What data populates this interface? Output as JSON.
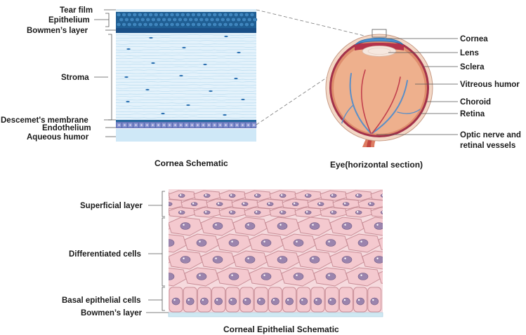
{
  "cornea_schematic": {
    "caption": "Cornea Schematic",
    "labels": {
      "tear_film": "Tear film",
      "epithelium": "Epithelium",
      "bowmens_layer": "Bowmen’s layer",
      "stroma": "Stroma",
      "descemets_membrane": "Descemet's membrane",
      "endothelium": "Endothelium",
      "aqueous_humor": "Aqueous humor"
    }
  },
  "eye_section": {
    "caption": "Eye(horizontal section)",
    "labels": {
      "cornea": "Cornea",
      "lens": "Lens",
      "sclera": "Sclera",
      "vitreous_humor": "Vitreous humor",
      "choroid": "Choroid",
      "retina": "Retina",
      "optic_nerve_line1": "Optic nerve and",
      "optic_nerve_line2": "retinal vessels"
    }
  },
  "epithelial_schematic": {
    "caption": "Corneal Epithelial Schematic",
    "labels": {
      "superficial_layer": "Superficial layer",
      "differentiated_cells": "Differentiated cells",
      "basal_epithelial_cells": "Basal epithelial cells",
      "bowmens_layer": "Bowmen’s layer"
    }
  },
  "colors": {
    "stroma_fill": "#e4f2fb",
    "stroma_fiber": "#b9dcf0",
    "epithelium_dark": "#1f5f95",
    "bowman_band": "#1a4f86",
    "endothelium_band": "#6f7fc4",
    "aqueous_fill": "#cfe8f7",
    "cell_fill": "#f4c9cf",
    "cell_stroke": "#c98f98",
    "nucleus_fill": "#9b84ad",
    "eyeball_fill": "#eeb08d",
    "choroid": "#a3314a",
    "vessel": "#5b8fc7"
  }
}
